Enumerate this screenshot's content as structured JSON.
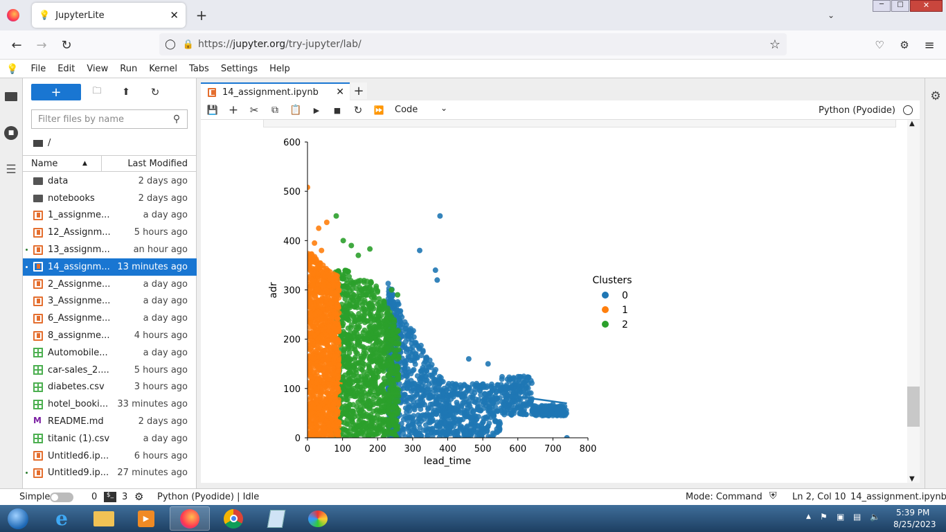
{
  "browser": {
    "tab_title": "JupyterLite",
    "url_prefix": "https://",
    "url_domain": "jupyter.org",
    "url_path": "/try-jupyter/lab/"
  },
  "menu": [
    "File",
    "Edit",
    "View",
    "Run",
    "Kernel",
    "Tabs",
    "Settings",
    "Help"
  ],
  "filebrowser": {
    "filter_placeholder": "Filter files by name",
    "path": "/",
    "col_name": "Name",
    "col_modified": "Last Modified",
    "files": [
      {
        "name": "data",
        "modified": "2 days ago",
        "type": "folder"
      },
      {
        "name": "notebooks",
        "modified": "2 days ago",
        "type": "folder"
      },
      {
        "name": "1_assignme...",
        "modified": "a day ago",
        "type": "notebook"
      },
      {
        "name": "12_Assignm...",
        "modified": "5 hours ago",
        "type": "notebook"
      },
      {
        "name": "13_assignm...",
        "modified": "an hour ago",
        "type": "notebook",
        "running": true
      },
      {
        "name": "14_assignm...",
        "modified": "13 minutes ago",
        "type": "notebook",
        "running": true,
        "selected": true
      },
      {
        "name": "2_Assignme...",
        "modified": "a day ago",
        "type": "notebook"
      },
      {
        "name": "3_Assignme...",
        "modified": "a day ago",
        "type": "notebook"
      },
      {
        "name": "6_Assignme...",
        "modified": "a day ago",
        "type": "notebook"
      },
      {
        "name": "8_assignme...",
        "modified": "4 hours ago",
        "type": "notebook"
      },
      {
        "name": "Automobile...",
        "modified": "a day ago",
        "type": "csv"
      },
      {
        "name": "car-sales_2....",
        "modified": "5 hours ago",
        "type": "csv"
      },
      {
        "name": "diabetes.csv",
        "modified": "3 hours ago",
        "type": "csv"
      },
      {
        "name": "hotel_booki...",
        "modified": "33 minutes ago",
        "type": "csv"
      },
      {
        "name": "README.md",
        "modified": "2 days ago",
        "type": "markdown"
      },
      {
        "name": "titanic (1).csv",
        "modified": "a day ago",
        "type": "csv"
      },
      {
        "name": "Untitled6.ip...",
        "modified": "6 hours ago",
        "type": "notebook"
      },
      {
        "name": "Untitled9.ip...",
        "modified": "27 minutes ago",
        "type": "notebook",
        "running": true
      }
    ]
  },
  "notebook": {
    "tab_title": "14_assignment.ipynb",
    "cell_type": "Code",
    "kernel": "Python (Pyodide)"
  },
  "chart_data": {
    "type": "scatter",
    "xlabel": "lead_time",
    "ylabel": "adr",
    "xlim": [
      0,
      800
    ],
    "ylim": [
      0,
      600
    ],
    "x_ticks": [
      0,
      100,
      200,
      300,
      400,
      500,
      600,
      700,
      800
    ],
    "y_ticks": [
      0,
      100,
      200,
      300,
      400,
      500,
      600
    ],
    "legend_title": "Clusters",
    "legend_position": "right",
    "series": [
      {
        "name": "0",
        "color": "#1f77b4",
        "x_range": [
          230,
          740
        ],
        "outliers": [
          [
            378,
            450
          ],
          [
            320,
            380
          ],
          [
            365,
            340
          ],
          [
            370,
            320
          ],
          [
            460,
            160
          ],
          [
            515,
            150
          ],
          [
            700,
            68
          ],
          [
            740,
            0
          ],
          [
            395,
            30
          ],
          [
            470,
            40
          ],
          [
            515,
            70
          ],
          [
            540,
            80
          ]
        ],
        "regression": [
          [
            555,
            88
          ],
          [
            740,
            70
          ]
        ]
      },
      {
        "name": "1",
        "color": "#ff7f0e",
        "x_range": [
          0,
          90
        ],
        "outliers": [
          [
            0,
            508
          ],
          [
            32,
            425
          ],
          [
            55,
            437
          ],
          [
            20,
            395
          ],
          [
            40,
            380
          ]
        ],
        "regression": [
          [
            30,
            122
          ],
          [
            100,
            110
          ]
        ]
      },
      {
        "name": "2",
        "color": "#2ca02c",
        "x_range": [
          75,
          260
        ],
        "outliers": [
          [
            82,
            450
          ],
          [
            102,
            400
          ],
          [
            125,
            390
          ],
          [
            178,
            383
          ],
          [
            145,
            370
          ],
          [
            240,
            300
          ],
          [
            257,
            290
          ]
        ],
        "regression": [
          [
            165,
            90
          ],
          [
            260,
            90
          ]
        ]
      }
    ]
  },
  "status": {
    "mode_label": "Simple",
    "terminals": "0",
    "kernels": "3",
    "kernel_status": "Python (Pyodide) | Idle",
    "mode": "Mode: Command",
    "cursor": "Ln 2, Col 10",
    "filename": "14_assignment.ipynb"
  },
  "taskbar": {
    "time": "5:39 PM",
    "date": "8/25/2023"
  }
}
